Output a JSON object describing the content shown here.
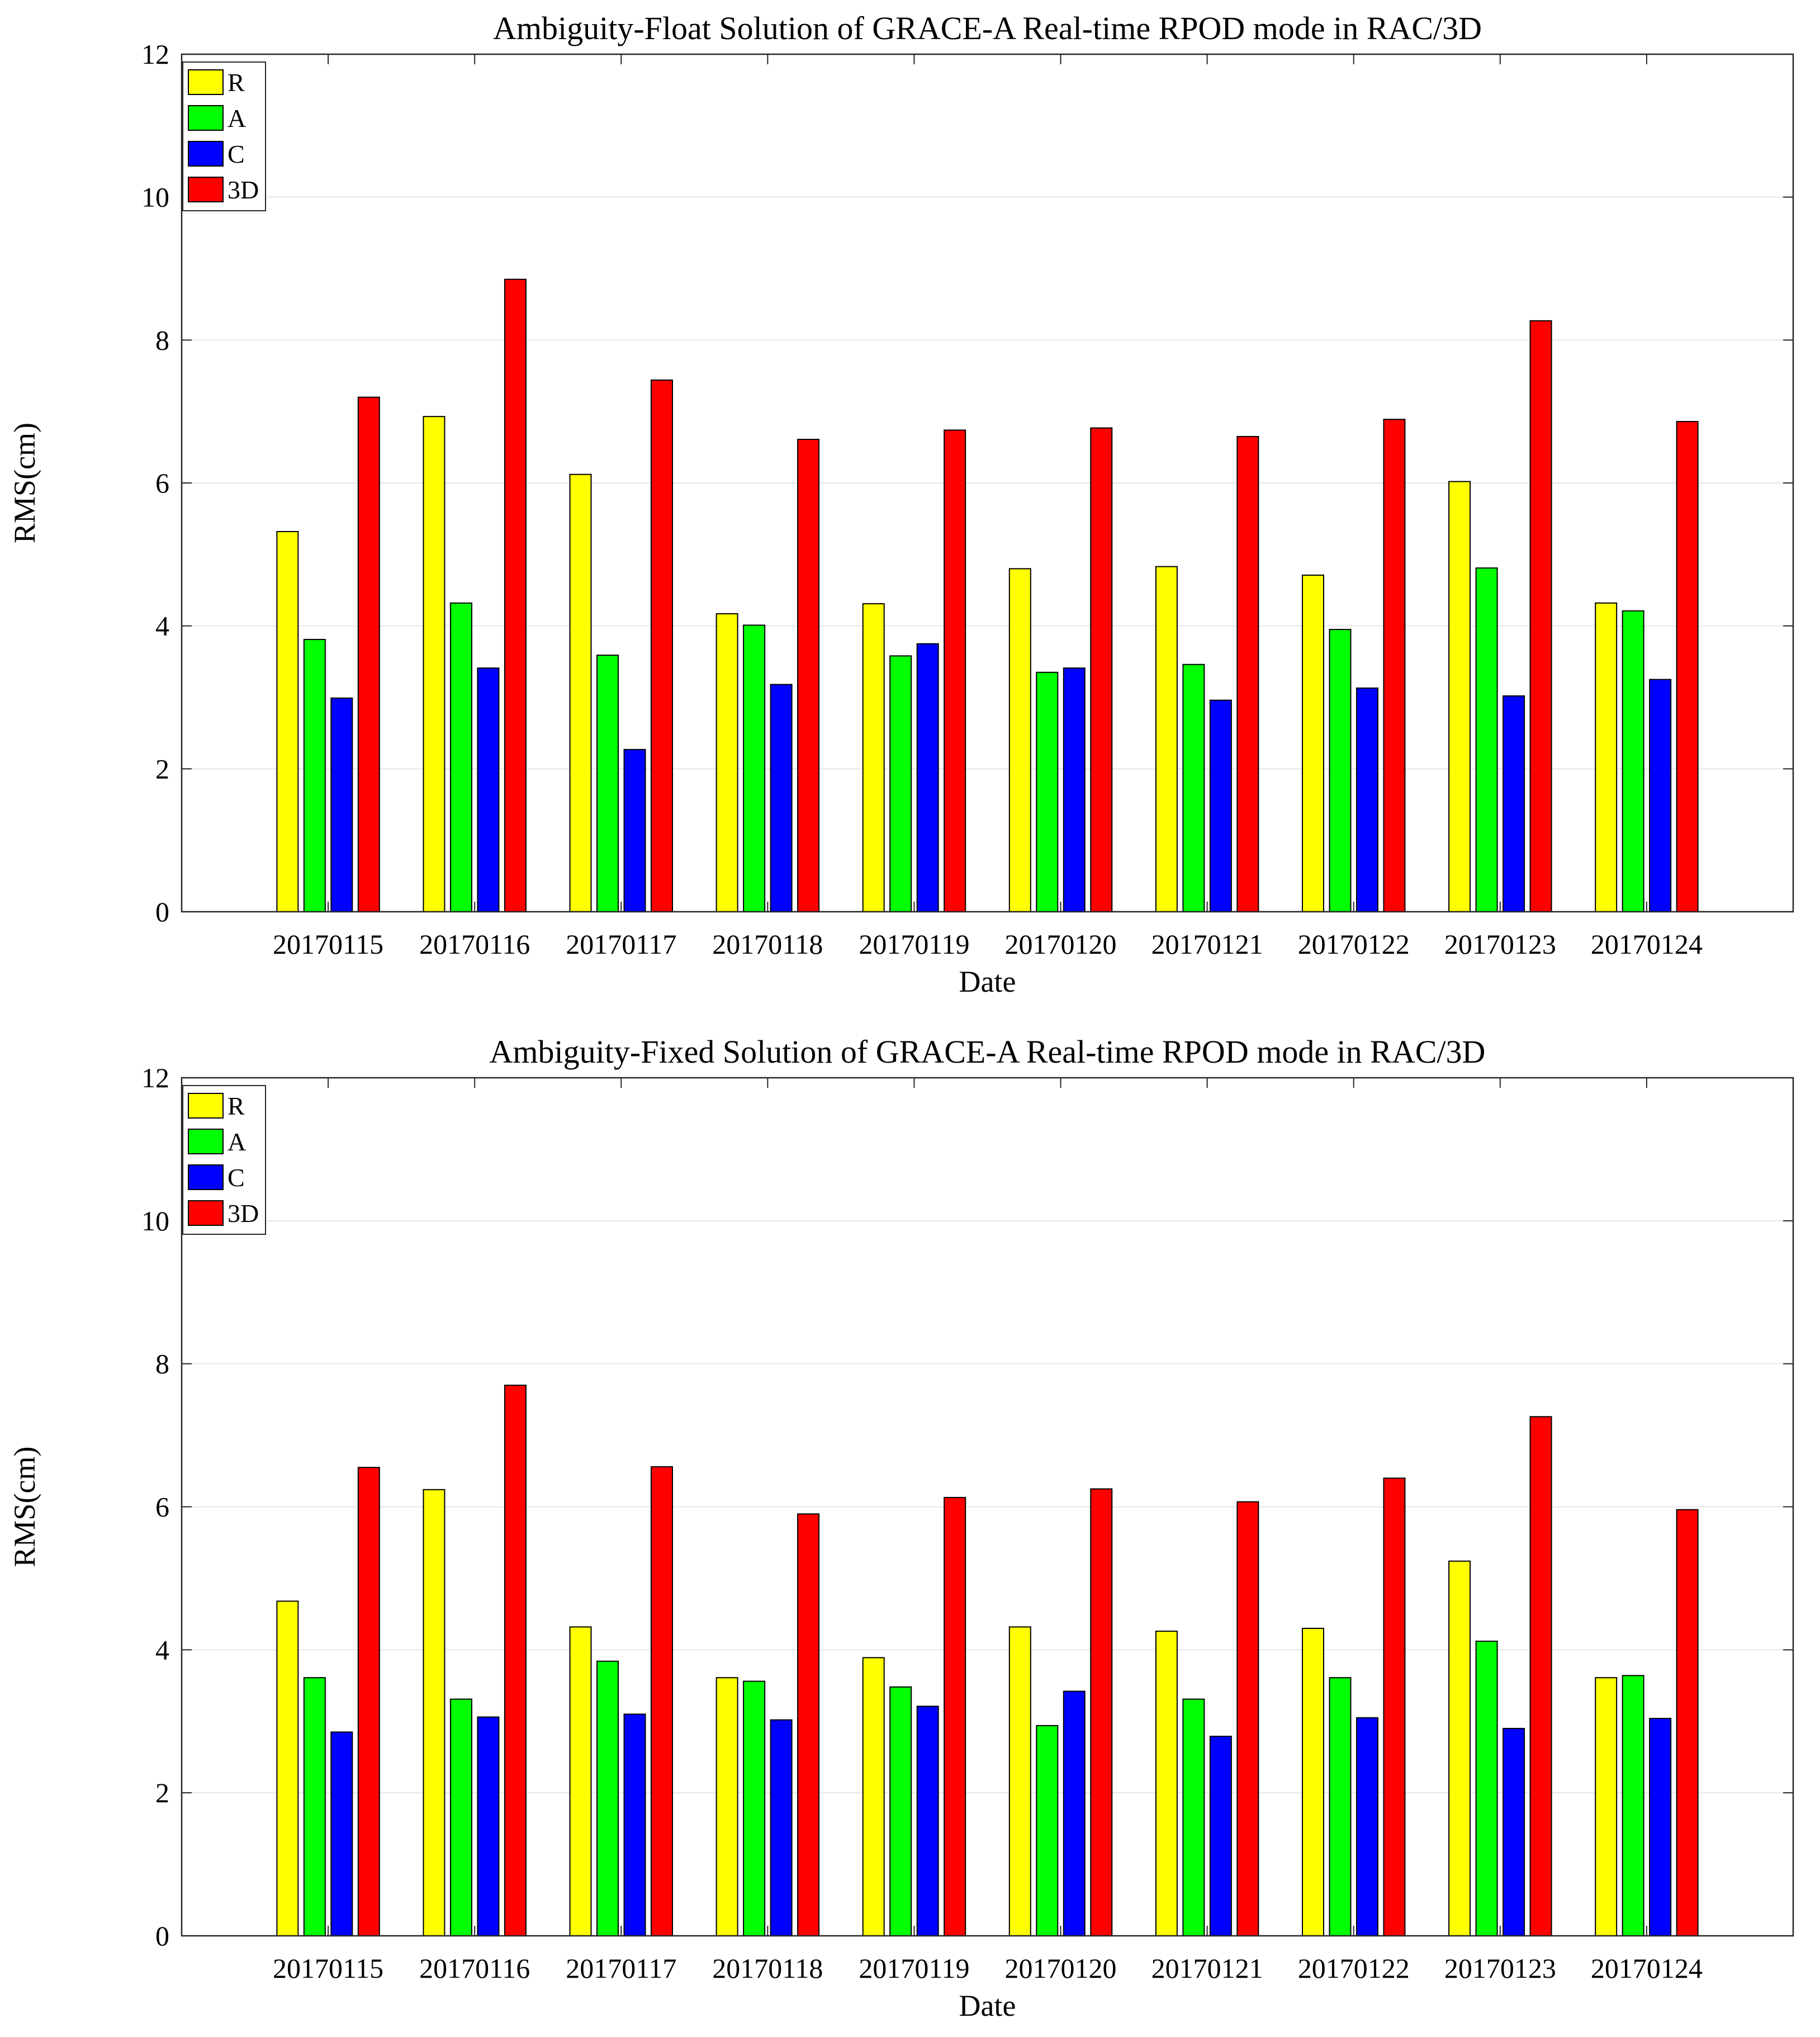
{
  "chart_data": [
    {
      "type": "bar",
      "title": "Ambiguity-Float Solution of GRACE-A Real-time RPOD mode in RAC/3D",
      "xlabel": "Date",
      "ylabel": "RMS(cm)",
      "ylim": [
        0,
        12
      ],
      "yticks": [
        "0",
        "2",
        "4",
        "6",
        "8",
        "10",
        "12"
      ],
      "grid": true,
      "legend_position": "top-left",
      "categories": [
        "20170115",
        "20170116",
        "20170117",
        "20170118",
        "20170119",
        "20170120",
        "20170121",
        "20170122",
        "20170123",
        "20170124"
      ],
      "series": [
        {
          "name": "R",
          "color": "#ffff00",
          "values": [
            5.32,
            6.93,
            6.12,
            4.17,
            4.31,
            4.8,
            4.83,
            4.71,
            6.02,
            4.32
          ]
        },
        {
          "name": "A",
          "color": "#00ff00",
          "values": [
            3.81,
            4.32,
            3.59,
            4.01,
            3.58,
            3.35,
            3.46,
            3.95,
            4.81,
            4.21
          ]
        },
        {
          "name": "C",
          "color": "#0000ff",
          "values": [
            2.99,
            3.41,
            2.27,
            3.18,
            3.75,
            3.41,
            2.96,
            3.13,
            3.02,
            3.25
          ]
        },
        {
          "name": "3D",
          "color": "#ff0000",
          "values": [
            7.2,
            8.85,
            7.44,
            6.61,
            6.74,
            6.77,
            6.65,
            6.89,
            8.27,
            6.86
          ]
        }
      ]
    },
    {
      "type": "bar",
      "title": "Ambiguity-Fixed Solution of GRACE-A Real-time RPOD mode in RAC/3D",
      "xlabel": "Date",
      "ylabel": "RMS(cm)",
      "ylim": [
        0,
        12
      ],
      "yticks": [
        "0",
        "2",
        "4",
        "6",
        "8",
        "10",
        "12"
      ],
      "grid": true,
      "legend_position": "top-left",
      "categories": [
        "20170115",
        "20170116",
        "20170117",
        "20170118",
        "20170119",
        "20170120",
        "20170121",
        "20170122",
        "20170123",
        "20170124"
      ],
      "series": [
        {
          "name": "R",
          "color": "#ffff00",
          "values": [
            4.68,
            6.24,
            4.32,
            3.61,
            3.89,
            4.32,
            4.26,
            4.3,
            5.24,
            3.61
          ]
        },
        {
          "name": "A",
          "color": "#00ff00",
          "values": [
            3.61,
            3.31,
            3.84,
            3.56,
            3.48,
            2.94,
            3.31,
            3.61,
            4.12,
            3.64
          ]
        },
        {
          "name": "C",
          "color": "#0000ff",
          "values": [
            2.85,
            3.06,
            3.1,
            3.02,
            3.21,
            3.42,
            2.79,
            3.05,
            2.9,
            3.04
          ]
        },
        {
          "name": "3D",
          "color": "#ff0000",
          "values": [
            6.55,
            7.7,
            6.56,
            5.9,
            6.13,
            6.25,
            6.07,
            6.4,
            7.26,
            5.96
          ]
        }
      ]
    }
  ]
}
